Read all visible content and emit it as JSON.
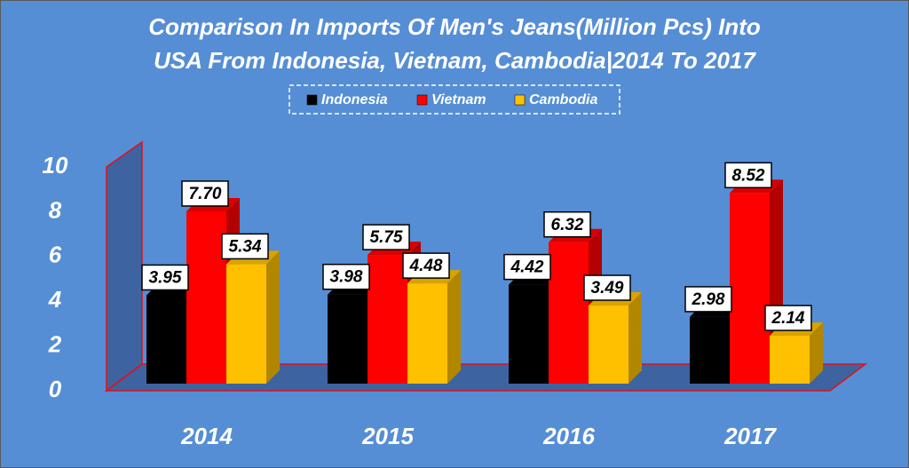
{
  "chart_data": {
    "type": "bar3d",
    "title": [
      "Comparison In Imports Of Men's Jeans(Million Pcs) Into",
      "USA From Indonesia, Vietnam, Cambodia|2014 To 2017"
    ],
    "categories": [
      "2014",
      "2015",
      "2016",
      "2017"
    ],
    "series": [
      {
        "name": "Indonesia",
        "color": "#000000",
        "values": [
          3.95,
          3.98,
          4.42,
          2.98
        ],
        "value_labels": [
          "3.95",
          "3.98",
          "4.42",
          "2.98"
        ]
      },
      {
        "name": "Vietnam",
        "color": "#ff0000",
        "values": [
          7.7,
          5.75,
          6.32,
          8.52
        ],
        "value_labels": [
          "7.70",
          "5.75",
          "6.32",
          "8.52"
        ]
      },
      {
        "name": "Cambodia",
        "color": "#ffc000",
        "values": [
          5.34,
          4.48,
          3.49,
          2.14
        ],
        "value_labels": [
          "5.34",
          "4.48",
          "3.49",
          "2.14"
        ]
      }
    ],
    "ylim": [
      0,
      10
    ],
    "yticks": [
      0,
      2,
      4,
      6,
      8,
      10
    ],
    "legend": "top"
  }
}
